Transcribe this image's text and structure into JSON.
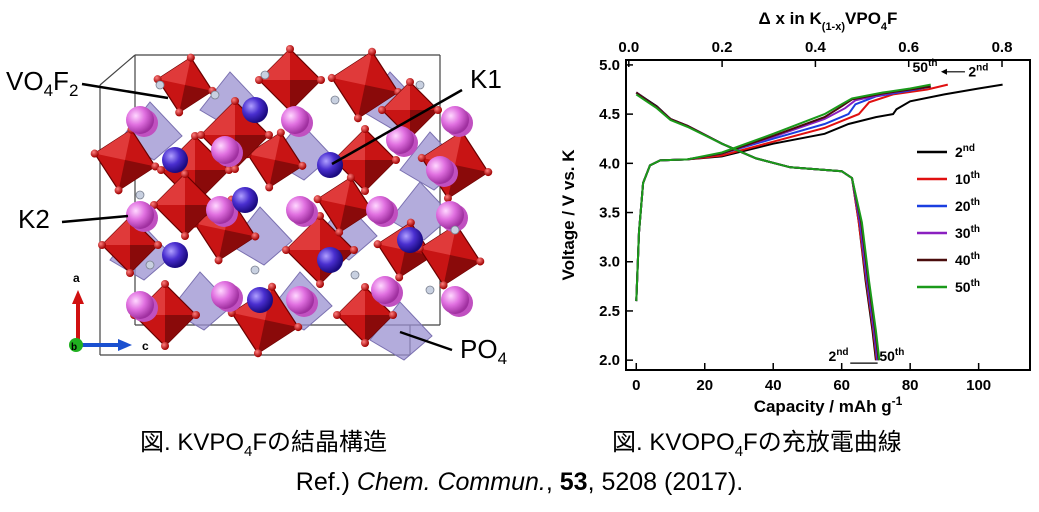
{
  "structure_figure": {
    "labels": {
      "vo4f2_main": "VO",
      "vo4f2_sub1": "4",
      "vo4f2_mid": "F",
      "vo4f2_sub2": "2",
      "k1": "K1",
      "k2": "K2",
      "po4_main": "PO",
      "po4_sub": "4"
    },
    "axes": {
      "a": "a",
      "b": "b",
      "c": "c"
    },
    "colors": {
      "vanadium_octahedra": "#c81414",
      "phosphate_tetrahedra": "#9a90d0",
      "k1_atoms": "#4a2fd0",
      "k2_atoms": "#e070e0",
      "oxygen_fluorine": "#d81010"
    }
  },
  "captions": {
    "left": {
      "prefix": "図. KVPO",
      "sub": "4",
      "suffix": "Fの結晶構造"
    },
    "right": {
      "prefix": "図. KVOPO",
      "sub": "4",
      "suffix": "Fの充放電曲線"
    }
  },
  "reference": {
    "prefix": "Ref.) ",
    "journal": "Chem. Commun.",
    "sep": ", ",
    "volume": "53",
    "rest": ", 5208 (2017)."
  },
  "chart_data": {
    "type": "line",
    "xlabel_bottom": "Capacity / mAh g",
    "xlabel_bottom_sup": "-1",
    "xlabel_top": "Δ x in K",
    "xlabel_top_sub": "(1-x)",
    "xlabel_top_tail": "VPO",
    "xlabel_top_sub2": "4",
    "xlabel_top_end": "F",
    "ylabel": "Voltage / V vs. K",
    "xlim": [
      -3,
      115
    ],
    "ylim": [
      1.9,
      5.05
    ],
    "top_xlim": [
      -0.006,
      0.86
    ],
    "xticks": [
      0,
      20,
      40,
      60,
      80,
      100
    ],
    "yticks": [
      2.0,
      2.5,
      3.0,
      3.5,
      4.0,
      4.5,
      5.0
    ],
    "top_xticks": [
      0.0,
      0.2,
      0.4,
      0.6,
      0.8
    ],
    "xtick_labels": [
      "0",
      "20",
      "40",
      "60",
      "80",
      "100"
    ],
    "ytick_labels": [
      "2.0",
      "2.5",
      "3.0",
      "3.5",
      "4.0",
      "4.5",
      "5.0"
    ],
    "top_xtick_labels": [
      "0.0",
      "0.2",
      "0.4",
      "0.6",
      "0.8"
    ],
    "legend": {
      "placement": "right"
    },
    "annotations": [
      {
        "text": "50",
        "sup": "th",
        "x": 88,
        "y": 4.93,
        "anchor": "end"
      },
      {
        "text": "2",
        "sup": "nd",
        "x": 97,
        "y": 4.88,
        "anchor": "start"
      },
      {
        "text": "2",
        "sup": "nd",
        "x": 62,
        "y": 1.99,
        "anchor": "end"
      },
      {
        "text": "50",
        "sup": "th",
        "x": 71,
        "y": 1.99,
        "anchor": "start"
      }
    ],
    "series": [
      {
        "name": "2",
        "sup": "nd",
        "color": "#000000",
        "charge": [
          [
            0,
            2.6
          ],
          [
            0.8,
            3.3
          ],
          [
            2,
            3.8
          ],
          [
            4,
            3.98
          ],
          [
            7,
            4.03
          ],
          [
            15,
            4.04
          ],
          [
            25,
            4.07
          ],
          [
            40,
            4.2
          ],
          [
            55,
            4.3
          ],
          [
            62,
            4.4
          ],
          [
            70,
            4.47
          ],
          [
            75,
            4.5
          ],
          [
            76,
            4.55
          ],
          [
            80,
            4.63
          ],
          [
            90,
            4.7
          ],
          [
            100,
            4.76
          ],
          [
            107,
            4.8
          ]
        ],
        "discharge": [
          [
            0,
            4.72
          ],
          [
            3,
            4.65
          ],
          [
            6,
            4.58
          ],
          [
            10,
            4.45
          ],
          [
            15,
            4.38
          ],
          [
            25,
            4.2
          ],
          [
            35,
            4.05
          ],
          [
            45,
            3.96
          ],
          [
            60,
            3.92
          ],
          [
            63,
            3.85
          ],
          [
            65,
            3.4
          ],
          [
            67,
            2.8
          ],
          [
            69,
            2.3
          ],
          [
            70,
            2.0
          ]
        ]
      },
      {
        "name": "10",
        "sup": "th",
        "color": "#e01010",
        "charge": [
          [
            0,
            2.6
          ],
          [
            0.8,
            3.3
          ],
          [
            2,
            3.8
          ],
          [
            4,
            3.98
          ],
          [
            7,
            4.03
          ],
          [
            15,
            4.04
          ],
          [
            25,
            4.08
          ],
          [
            40,
            4.22
          ],
          [
            55,
            4.36
          ],
          [
            65,
            4.5
          ],
          [
            68,
            4.62
          ],
          [
            75,
            4.7
          ],
          [
            85,
            4.75
          ],
          [
            91,
            4.8
          ]
        ],
        "discharge": [
          [
            0,
            4.72
          ],
          [
            3,
            4.64
          ],
          [
            6,
            4.57
          ],
          [
            10,
            4.45
          ],
          [
            15,
            4.38
          ],
          [
            25,
            4.2
          ],
          [
            35,
            4.05
          ],
          [
            45,
            3.96
          ],
          [
            60,
            3.92
          ],
          [
            63,
            3.85
          ],
          [
            65,
            3.4
          ],
          [
            67.2,
            2.8
          ],
          [
            69.2,
            2.3
          ],
          [
            70.2,
            2.0
          ]
        ]
      },
      {
        "name": "20",
        "sup": "th",
        "color": "#1a3ee0",
        "charge": [
          [
            0,
            2.6
          ],
          [
            0.8,
            3.3
          ],
          [
            2,
            3.8
          ],
          [
            4,
            3.98
          ],
          [
            7,
            4.03
          ],
          [
            15,
            4.04
          ],
          [
            25,
            4.1
          ],
          [
            40,
            4.25
          ],
          [
            55,
            4.4
          ],
          [
            62,
            4.5
          ],
          [
            64,
            4.6
          ],
          [
            70,
            4.68
          ],
          [
            80,
            4.74
          ],
          [
            86,
            4.78
          ]
        ],
        "discharge": [
          [
            0,
            4.72
          ],
          [
            3,
            4.64
          ],
          [
            6,
            4.57
          ],
          [
            10,
            4.45
          ],
          [
            15,
            4.38
          ],
          [
            25,
            4.2
          ],
          [
            35,
            4.05
          ],
          [
            45,
            3.96
          ],
          [
            60,
            3.92
          ],
          [
            63,
            3.85
          ],
          [
            65.3,
            3.4
          ],
          [
            67.4,
            2.8
          ],
          [
            69.4,
            2.3
          ],
          [
            70.4,
            2.0
          ]
        ]
      },
      {
        "name": "30",
        "sup": "th",
        "color": "#8a1fc0",
        "charge": [
          [
            0,
            2.6
          ],
          [
            0.8,
            3.3
          ],
          [
            2,
            3.8
          ],
          [
            4,
            3.98
          ],
          [
            7,
            4.03
          ],
          [
            15,
            4.04
          ],
          [
            25,
            4.1
          ],
          [
            40,
            4.27
          ],
          [
            55,
            4.45
          ],
          [
            61,
            4.56
          ],
          [
            64,
            4.64
          ],
          [
            72,
            4.7
          ],
          [
            80,
            4.75
          ],
          [
            86,
            4.78
          ]
        ],
        "discharge": [
          [
            0,
            4.72
          ],
          [
            3,
            4.64
          ],
          [
            6,
            4.57
          ],
          [
            10,
            4.45
          ],
          [
            15,
            4.38
          ],
          [
            25,
            4.2
          ],
          [
            35,
            4.05
          ],
          [
            45,
            3.96
          ],
          [
            60,
            3.92
          ],
          [
            63,
            3.85
          ],
          [
            65.5,
            3.4
          ],
          [
            67.6,
            2.8
          ],
          [
            69.6,
            2.3
          ],
          [
            70.6,
            2.0
          ]
        ]
      },
      {
        "name": "40",
        "sup": "th",
        "color": "#4a0d0d",
        "charge": [
          [
            0,
            2.6
          ],
          [
            0.8,
            3.3
          ],
          [
            2,
            3.8
          ],
          [
            4,
            3.98
          ],
          [
            7,
            4.03
          ],
          [
            15,
            4.04
          ],
          [
            25,
            4.1
          ],
          [
            40,
            4.28
          ],
          [
            55,
            4.47
          ],
          [
            60,
            4.58
          ],
          [
            63,
            4.65
          ],
          [
            72,
            4.71
          ],
          [
            80,
            4.75
          ],
          [
            86,
            4.78
          ]
        ],
        "discharge": [
          [
            0,
            4.72
          ],
          [
            3,
            4.64
          ],
          [
            6,
            4.57
          ],
          [
            10,
            4.45
          ],
          [
            15,
            4.38
          ],
          [
            25,
            4.2
          ],
          [
            35,
            4.05
          ],
          [
            45,
            3.96
          ],
          [
            60,
            3.92
          ],
          [
            63,
            3.85
          ],
          [
            65.7,
            3.4
          ],
          [
            67.8,
            2.8
          ],
          [
            69.8,
            2.3
          ],
          [
            70.8,
            2.0
          ]
        ]
      },
      {
        "name": "50",
        "sup": "th",
        "color": "#1a9a1a",
        "charge": [
          [
            0,
            2.6
          ],
          [
            0.8,
            3.3
          ],
          [
            2,
            3.8
          ],
          [
            4,
            3.98
          ],
          [
            7,
            4.03
          ],
          [
            15,
            4.04
          ],
          [
            25,
            4.11
          ],
          [
            40,
            4.3
          ],
          [
            55,
            4.5
          ],
          [
            60,
            4.6
          ],
          [
            63,
            4.66
          ],
          [
            72,
            4.72
          ],
          [
            80,
            4.76
          ],
          [
            86,
            4.8
          ]
        ],
        "discharge": [
          [
            0,
            4.7
          ],
          [
            3,
            4.63
          ],
          [
            6,
            4.56
          ],
          [
            10,
            4.44
          ],
          [
            15,
            4.37
          ],
          [
            25,
            4.2
          ],
          [
            35,
            4.05
          ],
          [
            45,
            3.96
          ],
          [
            60,
            3.92
          ],
          [
            63,
            3.85
          ],
          [
            65.9,
            3.4
          ],
          [
            68,
            2.8
          ],
          [
            70,
            2.3
          ],
          [
            71,
            2.0
          ]
        ]
      }
    ]
  }
}
